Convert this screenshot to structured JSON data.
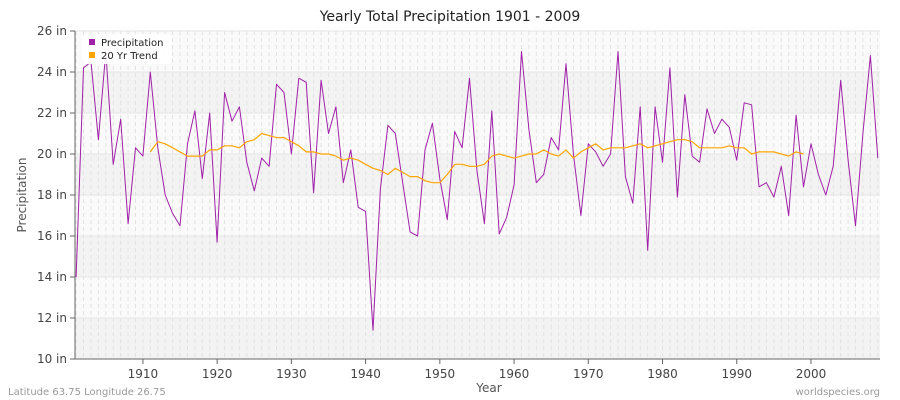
{
  "chart_data": {
    "type": "line",
    "title": "Yearly Total Precipitation 1901 - 2009",
    "xlabel": "Year",
    "ylabel": "Precipitation",
    "xlim": [
      1901,
      2009
    ],
    "ylim": [
      10,
      26
    ],
    "x_ticks": [
      1910,
      1920,
      1930,
      1940,
      1950,
      1960,
      1970,
      1980,
      1990,
      2000
    ],
    "y_ticks": [
      10,
      12,
      14,
      16,
      18,
      20,
      22,
      24,
      26
    ],
    "y_tick_labels": [
      "10 in",
      "12 in",
      "14 in",
      "16 in",
      "18 in",
      "20 in",
      "22 in",
      "24 in",
      "26 in"
    ],
    "legend": {
      "placement": "top-left",
      "entries": [
        "Precipitation",
        "20 Yr Trend"
      ]
    },
    "grid": true,
    "series": [
      {
        "name": "Precipitation",
        "color": "#a020a8",
        "start_year": 1901,
        "values": [
          14.0,
          24.2,
          24.5,
          20.7,
          25.0,
          19.5,
          21.7,
          16.6,
          20.3,
          19.9,
          24.0,
          20.3,
          18.0,
          17.1,
          16.5,
          20.5,
          22.1,
          18.8,
          22.0,
          15.7,
          23.0,
          21.6,
          22.3,
          19.6,
          18.2,
          19.8,
          19.4,
          23.4,
          23.0,
          20.0,
          23.7,
          23.5,
          18.1,
          23.6,
          21.0,
          22.3,
          18.6,
          20.2,
          17.4,
          17.2,
          11.4,
          18.3,
          21.4,
          21.0,
          18.6,
          16.2,
          16.0,
          20.2,
          21.5,
          18.8,
          16.8,
          21.1,
          20.3,
          23.7,
          19.2,
          16.6,
          22.1,
          16.1,
          16.9,
          18.5,
          25.0,
          21.2,
          18.6,
          19.0,
          20.8,
          20.2,
          24.4,
          20.0,
          17.0,
          20.5,
          20.1,
          19.4,
          20.0,
          25.0,
          18.9,
          17.6,
          22.3,
          15.3,
          22.3,
          19.6,
          24.2,
          17.9,
          22.9,
          19.9,
          19.6,
          22.2,
          21.0,
          21.7,
          21.3,
          19.7,
          22.5,
          22.4,
          18.4,
          18.6,
          17.9,
          19.4,
          17.0,
          21.9,
          18.4,
          20.5,
          19.0,
          18.0,
          19.4,
          23.6,
          19.7,
          16.5,
          21.0,
          24.8,
          19.8
        ]
      },
      {
        "name": "20 Yr Trend",
        "color": "#ffa500",
        "start_year": 1911,
        "values": [
          20.1,
          20.6,
          20.5,
          20.3,
          20.1,
          19.9,
          19.9,
          19.9,
          20.2,
          20.2,
          20.4,
          20.4,
          20.3,
          20.6,
          20.7,
          21.0,
          20.9,
          20.8,
          20.8,
          20.6,
          20.4,
          20.1,
          20.1,
          20.0,
          20.0,
          19.9,
          19.7,
          19.8,
          19.7,
          19.5,
          19.3,
          19.2,
          19.0,
          19.3,
          19.1,
          18.9,
          18.9,
          18.7,
          18.6,
          18.6,
          19.0,
          19.5,
          19.5,
          19.4,
          19.4,
          19.5,
          19.9,
          20.0,
          19.9,
          19.8,
          19.9,
          20.0,
          20.0,
          20.2,
          20.0,
          19.9,
          20.2,
          19.8,
          20.1,
          20.3,
          20.5,
          20.2,
          20.3,
          20.3,
          20.3,
          20.4,
          20.5,
          20.3,
          20.4,
          20.5,
          20.6,
          20.7,
          20.7,
          20.6,
          20.3,
          20.3,
          20.3,
          20.3,
          20.4,
          20.3,
          20.3,
          20.0,
          20.1,
          20.1,
          20.1,
          20.0,
          19.9,
          20.1,
          20.0
        ]
      }
    ]
  },
  "footer": {
    "location": "Latitude 63.75 Longitude 26.75",
    "source": "worldspecies.org"
  }
}
